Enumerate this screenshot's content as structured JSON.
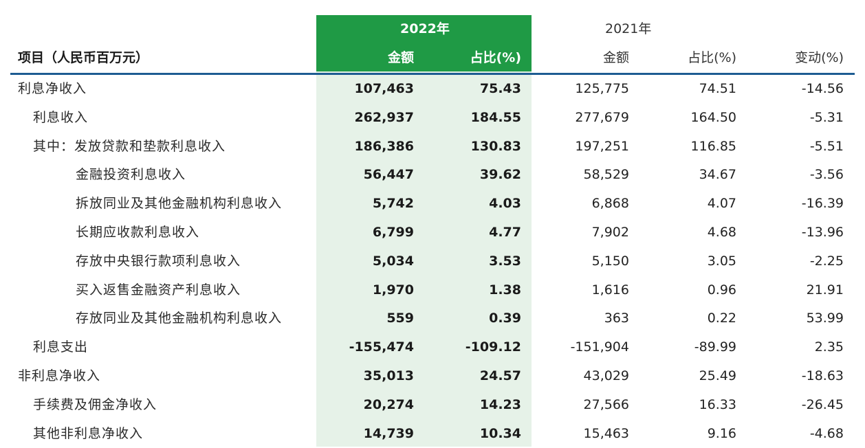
{
  "header": {
    "item_label": "项目（人民币百万元）",
    "year_2022": "2022年",
    "year_2021": "2021年",
    "amount_2022": "金额",
    "share_2022": "占比(%)",
    "amount_2021": "金额",
    "share_2021": "占比(%)",
    "change": "变动(%)"
  },
  "rows": [
    {
      "label": "利息净收入",
      "level": 0,
      "amt22": "107,463",
      "pct22": "75.43",
      "amt21": "125,775",
      "pct21": "74.51",
      "chg": "-14.56"
    },
    {
      "label": "利息收入",
      "level": 1,
      "amt22": "262,937",
      "pct22": "184.55",
      "amt21": "277,679",
      "pct21": "164.50",
      "chg": "-5.31"
    },
    {
      "label": "其中：发放贷款和垫款利息收入",
      "level": 1,
      "amt22": "186,386",
      "pct22": "130.83",
      "amt21": "197,251",
      "pct21": "116.85",
      "chg": "-5.51"
    },
    {
      "label": "金融投资利息收入",
      "level": 2,
      "amt22": "56,447",
      "pct22": "39.62",
      "amt21": "58,529",
      "pct21": "34.67",
      "chg": "-3.56"
    },
    {
      "label": "拆放同业及其他金融机构利息收入",
      "level": 2,
      "amt22": "5,742",
      "pct22": "4.03",
      "amt21": "6,868",
      "pct21": "4.07",
      "chg": "-16.39"
    },
    {
      "label": "长期应收款利息收入",
      "level": 2,
      "amt22": "6,799",
      "pct22": "4.77",
      "amt21": "7,902",
      "pct21": "4.68",
      "chg": "-13.96"
    },
    {
      "label": "存放中央银行款项利息收入",
      "level": 2,
      "amt22": "5,034",
      "pct22": "3.53",
      "amt21": "5,150",
      "pct21": "3.05",
      "chg": "-2.25"
    },
    {
      "label": "买入返售金融资产利息收入",
      "level": 2,
      "amt22": "1,970",
      "pct22": "1.38",
      "amt21": "1,616",
      "pct21": "0.96",
      "chg": "21.91"
    },
    {
      "label": "存放同业及其他金融机构利息收入",
      "level": 2,
      "amt22": "559",
      "pct22": "0.39",
      "amt21": "363",
      "pct21": "0.22",
      "chg": "53.99"
    },
    {
      "label": "利息支出",
      "level": 1,
      "amt22": "-155,474",
      "pct22": "-109.12",
      "amt21": "-151,904",
      "pct21": "-89.99",
      "chg": "2.35"
    },
    {
      "label": "非利息净收入",
      "level": 0,
      "amt22": "35,013",
      "pct22": "24.57",
      "amt21": "43,029",
      "pct21": "25.49",
      "chg": "-18.63"
    },
    {
      "label": "手续费及佣金净收入",
      "level": 1,
      "amt22": "20,274",
      "pct22": "14.23",
      "amt21": "27,566",
      "pct21": "16.33",
      "chg": "-26.45"
    },
    {
      "label": "其他非利息净收入",
      "level": 1,
      "amt22": "14,739",
      "pct22": "10.34",
      "amt21": "15,463",
      "pct21": "9.16",
      "chg": "-4.68"
    }
  ],
  "colors": {
    "highlight_header": "#1f9a45",
    "highlight_body": "#e6f2e8",
    "header_rule": "#1e5c92"
  }
}
